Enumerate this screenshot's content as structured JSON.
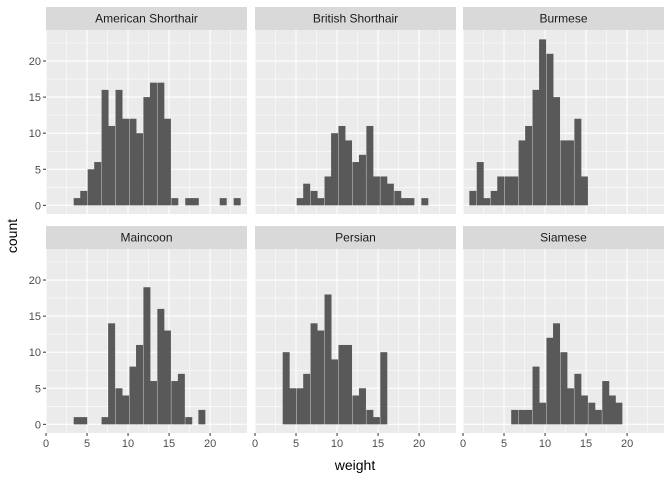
{
  "chart_data": {
    "type": "bar",
    "subtype": "faceted-histogram",
    "xlabel": "weight",
    "ylabel": "count",
    "xlim": [
      0,
      24.5
    ],
    "ylim": [
      -1.2,
      24.3
    ],
    "bin_width": 0.85,
    "x_ticks": [
      0,
      5,
      10,
      15,
      20
    ],
    "x_minor": [
      2.5,
      7.5,
      12.5,
      17.5,
      22.5
    ],
    "y_ticks": [
      0,
      5,
      10,
      15,
      20
    ],
    "y_minor": [
      2.5,
      7.5,
      12.5,
      17.5,
      22.5
    ],
    "grid": true,
    "colors": {
      "bar": "#595959",
      "panel": "#ebebeb",
      "grid": "#ffffff",
      "strip": "#d9d9d9",
      "tick": "#333333"
    },
    "facets": [
      {
        "name": "American Shorthair",
        "bins": [
          [
            3.8,
            1
          ],
          [
            4.6,
            2
          ],
          [
            5.5,
            5
          ],
          [
            6.3,
            6
          ],
          [
            7.2,
            16
          ],
          [
            8.0,
            11
          ],
          [
            8.9,
            16
          ],
          [
            9.7,
            12
          ],
          [
            10.6,
            12
          ],
          [
            11.4,
            10
          ],
          [
            12.3,
            15
          ],
          [
            13.1,
            17
          ],
          [
            14.0,
            17
          ],
          [
            14.8,
            12
          ],
          [
            15.7,
            1
          ],
          [
            17.4,
            1
          ],
          [
            18.2,
            1
          ],
          [
            21.6,
            1
          ],
          [
            23.3,
            1
          ]
        ]
      },
      {
        "name": "British Shorthair",
        "bins": [
          [
            5.5,
            1
          ],
          [
            6.3,
            3
          ],
          [
            7.2,
            2
          ],
          [
            8.0,
            1
          ],
          [
            8.9,
            4
          ],
          [
            9.7,
            10
          ],
          [
            10.6,
            11
          ],
          [
            11.4,
            9
          ],
          [
            12.3,
            6
          ],
          [
            13.1,
            7
          ],
          [
            14.0,
            11
          ],
          [
            14.8,
            4
          ],
          [
            15.7,
            4
          ],
          [
            16.5,
            3
          ],
          [
            17.4,
            2
          ],
          [
            18.2,
            1
          ],
          [
            19.0,
            1
          ],
          [
            20.7,
            1
          ]
        ]
      },
      {
        "name": "Burmese",
        "bins": [
          [
            1.2,
            2
          ],
          [
            2.1,
            6
          ],
          [
            2.9,
            1
          ],
          [
            3.8,
            2
          ],
          [
            4.6,
            4
          ],
          [
            5.5,
            4
          ],
          [
            6.3,
            4
          ],
          [
            7.2,
            9
          ],
          [
            8.0,
            11
          ],
          [
            8.9,
            16
          ],
          [
            9.7,
            23
          ],
          [
            10.6,
            21
          ],
          [
            11.4,
            15
          ],
          [
            12.3,
            9
          ],
          [
            13.1,
            9
          ],
          [
            14.0,
            12
          ],
          [
            14.8,
            4
          ]
        ]
      },
      {
        "name": "Maincoon",
        "bins": [
          [
            3.8,
            1
          ],
          [
            4.6,
            1
          ],
          [
            7.2,
            1
          ],
          [
            8.0,
            14
          ],
          [
            8.9,
            5
          ],
          [
            9.7,
            4
          ],
          [
            10.6,
            8
          ],
          [
            11.4,
            11
          ],
          [
            12.3,
            19
          ],
          [
            13.1,
            6
          ],
          [
            14.0,
            16
          ],
          [
            14.8,
            13
          ],
          [
            15.7,
            6
          ],
          [
            16.5,
            7
          ],
          [
            17.4,
            1
          ],
          [
            19.0,
            2
          ]
        ]
      },
      {
        "name": "Persian",
        "bins": [
          [
            3.8,
            10
          ],
          [
            4.6,
            5
          ],
          [
            5.5,
            5
          ],
          [
            6.3,
            7
          ],
          [
            7.2,
            14
          ],
          [
            8.0,
            13
          ],
          [
            8.9,
            18
          ],
          [
            9.7,
            9
          ],
          [
            10.6,
            11
          ],
          [
            11.4,
            11
          ],
          [
            12.3,
            4
          ],
          [
            13.1,
            5
          ],
          [
            14.0,
            2
          ],
          [
            14.8,
            1
          ],
          [
            15.7,
            10
          ]
        ]
      },
      {
        "name": "Siamese",
        "bins": [
          [
            6.3,
            2
          ],
          [
            7.2,
            2
          ],
          [
            8.0,
            2
          ],
          [
            8.9,
            8
          ],
          [
            9.7,
            3
          ],
          [
            10.6,
            12
          ],
          [
            11.4,
            14
          ],
          [
            12.3,
            10
          ],
          [
            13.1,
            5
          ],
          [
            14.0,
            7
          ],
          [
            14.8,
            4
          ],
          [
            15.7,
            3
          ],
          [
            16.5,
            2
          ],
          [
            17.4,
            6
          ],
          [
            18.2,
            4
          ],
          [
            19.0,
            3
          ]
        ]
      }
    ]
  }
}
